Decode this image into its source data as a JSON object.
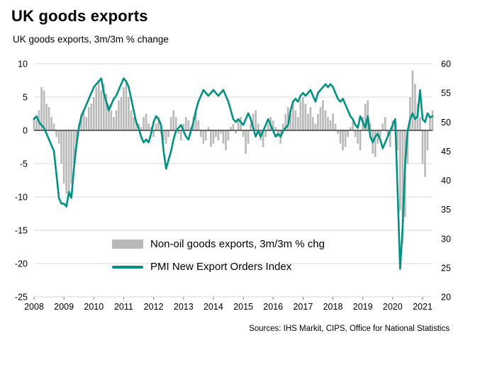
{
  "title": "UK goods exports",
  "subtitle": "UK goods exports, 3m/3m % change",
  "source": "Sources: IHS Markit, CIPS, Office for National Statistics",
  "legend": {
    "bar_label": "Non-oil goods exports, 3m/3m % chg",
    "line_label": "PMI New Export Orders Index"
  },
  "colors": {
    "bar": "#b9b9b9",
    "line": "#009183",
    "grid": "#d9d9d9",
    "zero_line": "#1a1a1a",
    "tick": "#7f7f7f",
    "text": "#000000"
  },
  "chart_data": {
    "type": "bar+line",
    "title": "UK goods exports, 3m/3m % change",
    "x_start": {
      "year": 2008,
      "month": 1
    },
    "frequency": "monthly",
    "x_ticks": [
      2008,
      2009,
      2010,
      2011,
      2012,
      2013,
      2014,
      2015,
      2016,
      2017,
      2018,
      2019,
      2020,
      2021
    ],
    "left_axis": {
      "range": [
        -25,
        10
      ],
      "ticks": [
        10,
        5,
        0,
        -5,
        -10,
        -15,
        -20,
        -25
      ]
    },
    "right_axis": {
      "range": [
        20,
        60
      ],
      "ticks": [
        60,
        55,
        50,
        45,
        40,
        35,
        30,
        25,
        20
      ]
    },
    "grid": true,
    "legend_position": "inside-lower-left",
    "series": [
      {
        "name": "Non-oil goods exports, 3m/3m % chg",
        "type": "bar",
        "axis": "left",
        "values": [
          2,
          1.5,
          3,
          6.5,
          6,
          4,
          3.5,
          2,
          1,
          -1,
          -2,
          -5,
          -8,
          -9.5,
          -10,
          -8,
          -5,
          -2,
          1,
          2.5,
          3,
          2,
          3.5,
          4,
          5,
          6.5,
          7.5,
          6,
          7,
          5.5,
          4,
          3,
          2,
          3,
          4.5,
          5,
          6.5,
          7.5,
          5,
          3,
          2,
          1.5,
          1,
          0.5,
          2,
          2.5,
          1,
          0.5,
          -1,
          1,
          2,
          -0.5,
          -1.5,
          -2,
          -1,
          2,
          3,
          2,
          -0.5,
          -1.5,
          1,
          2,
          1.5,
          0.5,
          2,
          3,
          1.5,
          -1,
          -2,
          -1.5,
          0.5,
          -2.5,
          -2,
          -1,
          -1.5,
          -0.5,
          -2,
          -3,
          -1.5,
          0.5,
          1,
          -0.5,
          1.5,
          2,
          -1,
          -3.5,
          -2,
          1,
          2.5,
          3,
          1,
          -1.5,
          -2.5,
          -1,
          1,
          2,
          1.5,
          0.5,
          -1,
          -2,
          1,
          2.5,
          3.5,
          2.5,
          4,
          3,
          2,
          4.5,
          5,
          4,
          2.5,
          3.5,
          2,
          1,
          2.5,
          3.5,
          4.5,
          3,
          2,
          1.5,
          2.5,
          1,
          -0.5,
          -2,
          -3,
          -2.5,
          -1,
          0.5,
          1.5,
          -1,
          -2,
          -3,
          2,
          4,
          4.5,
          1,
          -3.5,
          -4,
          -2,
          -1,
          1,
          2,
          -1,
          -2.5,
          1.5,
          1,
          -3,
          -12,
          -17,
          -13,
          -5,
          5,
          9,
          7,
          4,
          2,
          -5,
          -7,
          -3,
          2,
          3
        ]
      },
      {
        "name": "PMI New Export Orders Index",
        "type": "line",
        "axis": "right",
        "values": [
          50.5,
          51,
          50,
          49.5,
          49,
          48,
          47,
          46,
          45,
          41,
          37,
          36,
          36,
          35.5,
          38,
          37,
          42,
          46,
          49,
          51,
          52,
          53,
          54,
          55,
          56,
          56.5,
          57,
          57.5,
          55,
          53.5,
          52,
          53,
          54,
          54.5,
          55.5,
          56.5,
          57.5,
          57,
          56,
          54,
          52,
          50,
          49,
          47.5,
          46.5,
          47,
          46.5,
          48,
          50,
          51,
          50.5,
          49.5,
          45,
          42,
          43.5,
          45,
          47,
          48.5,
          49,
          49.5,
          48.5,
          47.5,
          47,
          48.5,
          50,
          52,
          53.5,
          54.5,
          55.5,
          55,
          54.5,
          55,
          55.5,
          55,
          54.5,
          55,
          55.5,
          54.5,
          53.5,
          52,
          50.5,
          50,
          50.5,
          50,
          49.5,
          50.5,
          51.5,
          50.5,
          49,
          47.5,
          48.5,
          47.5,
          48.5,
          49.5,
          50.5,
          49.5,
          48.5,
          47.5,
          48,
          47.5,
          48.5,
          49,
          49.5,
          52,
          53.5,
          54,
          53.5,
          54.5,
          55,
          54.5,
          55,
          55.5,
          54.5,
          53.5,
          55,
          55.5,
          56,
          56.5,
          56,
          56.5,
          56,
          55,
          54,
          53.5,
          54,
          53,
          52,
          51,
          50.5,
          49.5,
          49,
          51,
          50,
          49,
          51,
          47.5,
          46.5,
          47.5,
          48,
          47,
          45.5,
          46.5,
          47.5,
          48.5,
          49.5,
          50.5,
          38,
          24.8,
          32,
          43,
          48.5,
          50.5,
          51.5,
          50.5,
          51,
          55.5,
          50.5,
          50,
          51.5,
          50.8,
          51
        ]
      }
    ]
  }
}
